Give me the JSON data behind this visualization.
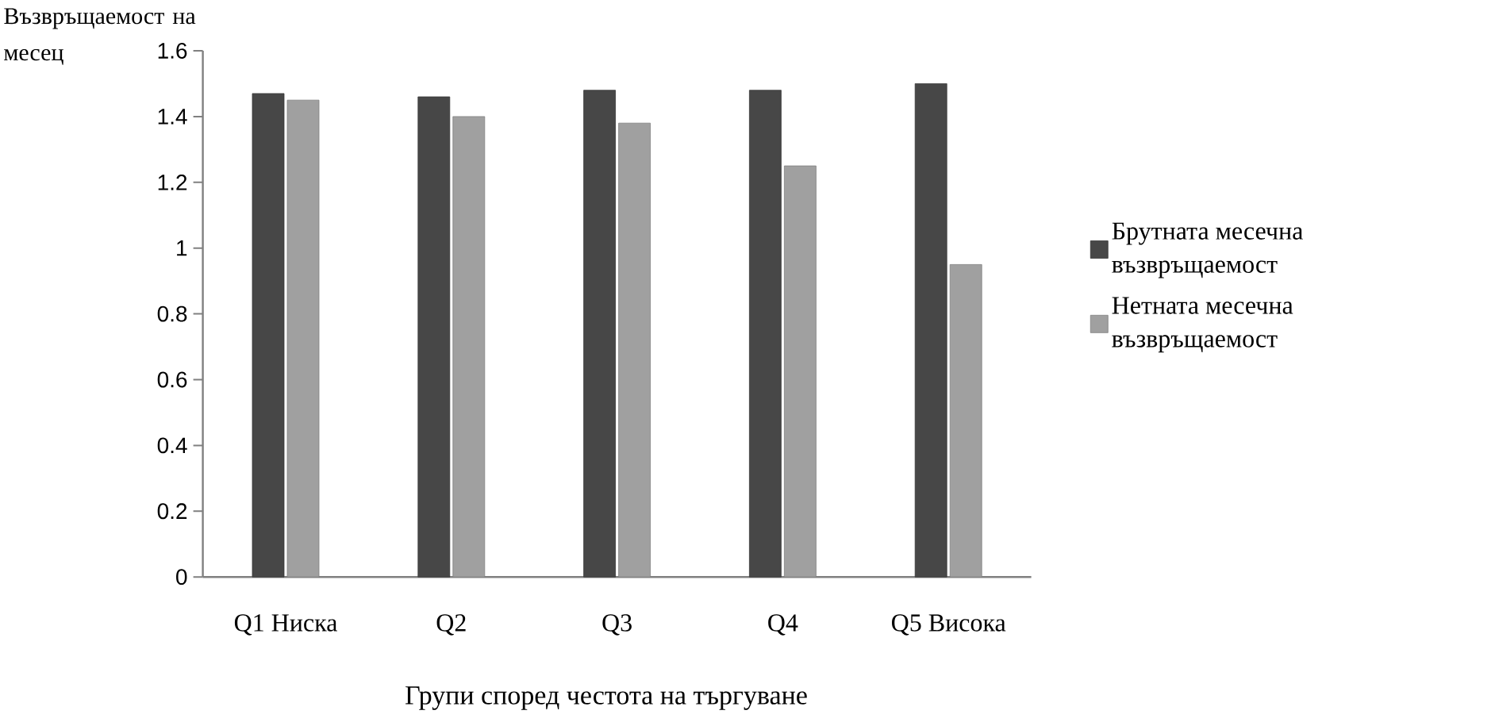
{
  "chart_data": {
    "type": "bar",
    "xlabel": "Групи според честота на търгуване",
    "ylabel": "Възвръщаемост на месец",
    "categories": [
      "Q1 Ниска",
      "Q2",
      "Q3",
      "Q4",
      "Q5 Висока"
    ],
    "series": [
      {
        "name": "Брутната месечна възвръщаемост",
        "color": "#474747",
        "values": [
          1.47,
          1.46,
          1.48,
          1.48,
          1.5
        ]
      },
      {
        "name": "Нетната месечна възвръщаемост",
        "color": "#a0a0a0",
        "values": [
          1.45,
          1.4,
          1.38,
          1.25,
          0.95
        ]
      }
    ],
    "ylim": [
      0,
      1.6
    ],
    "yticks": [
      0,
      0.2,
      0.4,
      0.6,
      0.8,
      1,
      1.2,
      1.4,
      1.6
    ],
    "grid": false,
    "legend": "right"
  }
}
